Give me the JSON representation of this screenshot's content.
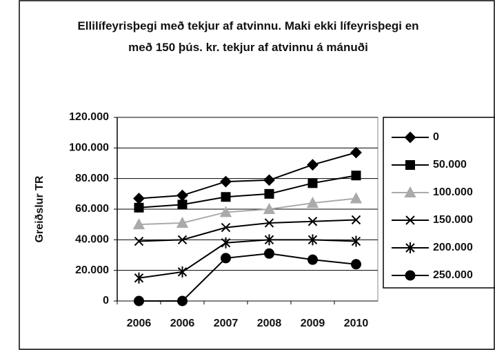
{
  "chart_data": {
    "type": "line",
    "title": "Ellilífeyrisþegi með tekjur af atvinnu. Maki ekki lífeyrisþegi en með 150 þús. kr. tekjur af atvinnu á mánuði",
    "y_label": "Greiðslur TR",
    "categories": [
      "2006",
      "2006",
      "2007",
      "2008",
      "2009",
      "2010"
    ],
    "series": [
      {
        "name": "0",
        "color": "#000000",
        "marker": "diamond",
        "values": [
          67000,
          69000,
          78000,
          79000,
          89000,
          97000
        ]
      },
      {
        "name": "50.000",
        "color": "#000000",
        "marker": "square",
        "values": [
          61000,
          63000,
          68000,
          70000,
          77000,
          82000
        ]
      },
      {
        "name": "100.000",
        "color": "#aaaaaa",
        "marker": "triangle",
        "values": [
          50000,
          51000,
          58000,
          60000,
          64000,
          67000
        ]
      },
      {
        "name": "150.000",
        "color": "#000000",
        "marker": "x",
        "values": [
          39000,
          40000,
          48000,
          51000,
          52000,
          53000
        ]
      },
      {
        "name": "200.000",
        "color": "#000000",
        "marker": "asterisk",
        "values": [
          15000,
          19000,
          38000,
          40000,
          40000,
          39000
        ]
      },
      {
        "name": "250.000",
        "color": "#000000",
        "marker": "circle",
        "values": [
          0,
          0,
          28000,
          31000,
          27000,
          24000
        ]
      }
    ],
    "ylim": [
      0,
      120000
    ],
    "yticks": [
      0,
      {
        "value": 20000,
        "label": "20.000"
      },
      {
        "value": 40000,
        "label": "40.000"
      },
      {
        "value": 60000,
        "label": "60.000"
      },
      {
        "value": 80000,
        "label": "80.000"
      },
      {
        "value": 100000,
        "label": "100.000"
      },
      {
        "value": 120000,
        "label": "120.000"
      }
    ],
    "grid": true,
    "legend": "right"
  }
}
